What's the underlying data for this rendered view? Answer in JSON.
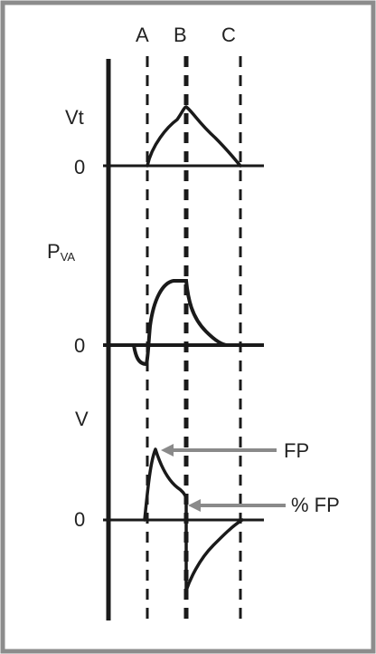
{
  "phases": {
    "a": "A",
    "b": "B",
    "c": "C"
  },
  "panels": {
    "vt": {
      "label": "Vt",
      "zero": "0"
    },
    "pva": {
      "label_main": "P",
      "label_sub": "VA",
      "zero": "0"
    },
    "v": {
      "label": "V",
      "zero": "0"
    }
  },
  "annotations": {
    "fp": "FP",
    "percent_fp": "% FP"
  },
  "colors": {
    "ink": "#1a1a1a",
    "arrow": "#8a8a8a",
    "frame": "#8c8c8c"
  }
}
